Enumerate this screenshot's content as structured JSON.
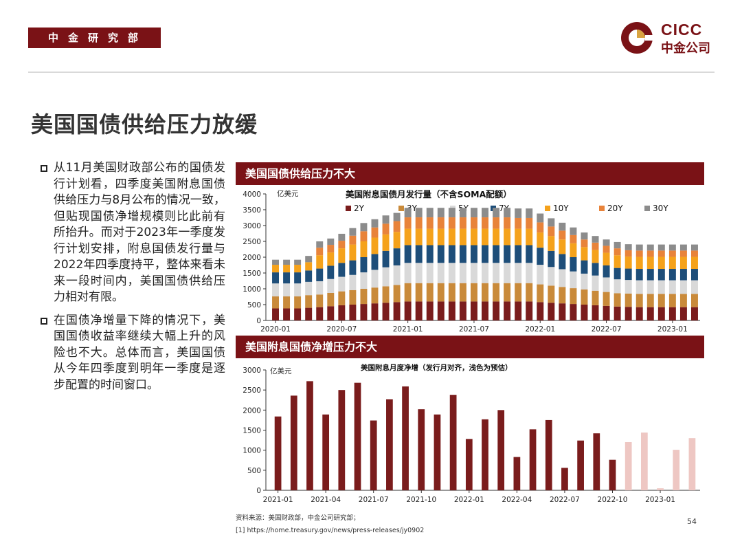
{
  "header": {
    "dept": "中金研究部",
    "logo_en": "CICC",
    "logo_cn": "中金公司",
    "brand_color": "#7a1216"
  },
  "title": "美国国债供给压力放缓",
  "bullets": [
    "从11月美国财政部公布的国债发行计划看，四季度美国附息国债供给压力与8月公布的情况一致，但贴现国债净增规模则比此前有所抬升。而对于2023年一季度发行计划安排，附息国债发行量与2022年四季度持平，整体来看未来一段时间内，美国国债供给压力相对有限。",
    "在国债净增量下降的情况下，美国国债收益率继续大幅上升的风险也不大。总体而言，美国国债从今年四季度到明年一季度是逐步配置的时间窗口。"
  ],
  "panels": {
    "p1": "美国国债供给压力不大",
    "p2": "美国附息国债净增压力不大"
  },
  "chart_data": [
    {
      "type": "bar",
      "stacked": true,
      "title": "美国附息国债月发行量（不含SOMA配额）",
      "unit": "亿美元",
      "ylim": [
        0,
        4000
      ],
      "yticks": [
        0,
        500,
        1000,
        1500,
        2000,
        2500,
        3000,
        3500,
        4000
      ],
      "xtick_labels": [
        "2020-01",
        "2020-07",
        "2021-01",
        "2021-07",
        "2022-01",
        "2022-07",
        "2023-01"
      ],
      "categories": [
        "2020-01",
        "2020-02",
        "2020-03",
        "2020-04",
        "2020-05",
        "2020-06",
        "2020-07",
        "2020-08",
        "2020-09",
        "2020-10",
        "2020-11",
        "2020-12",
        "2021-01",
        "2021-02",
        "2021-03",
        "2021-04",
        "2021-05",
        "2021-06",
        "2021-07",
        "2021-08",
        "2021-09",
        "2021-10",
        "2021-11",
        "2021-12",
        "2022-01",
        "2022-02",
        "2022-03",
        "2022-04",
        "2022-05",
        "2022-06",
        "2022-07",
        "2022-08",
        "2022-09",
        "2022-10",
        "2022-11",
        "2022-12",
        "2023-01",
        "2023-02",
        "2023-03"
      ],
      "series": [
        {
          "name": "2Y",
          "color": "#7a1c1c",
          "values": [
            380,
            380,
            380,
            400,
            420,
            450,
            480,
            500,
            520,
            540,
            560,
            580,
            600,
            600,
            600,
            600,
            600,
            600,
            600,
            600,
            600,
            600,
            600,
            600,
            580,
            560,
            540,
            520,
            500,
            480,
            460,
            440,
            430,
            420,
            420,
            420,
            420,
            420,
            420
          ]
        },
        {
          "name": "3Y",
          "color": "#c98a3a",
          "values": [
            380,
            380,
            380,
            400,
            400,
            420,
            440,
            460,
            480,
            500,
            520,
            540,
            580,
            580,
            580,
            580,
            580,
            580,
            580,
            580,
            580,
            580,
            580,
            580,
            560,
            540,
            520,
            500,
            480,
            460,
            440,
            420,
            420,
            420,
            420,
            420,
            420,
            420,
            420
          ]
        },
        {
          "name": "5Y",
          "color": "#d9d9d9",
          "values": [
            410,
            410,
            410,
            420,
            420,
            440,
            460,
            480,
            520,
            560,
            600,
            620,
            640,
            640,
            640,
            640,
            640,
            640,
            640,
            640,
            640,
            640,
            640,
            640,
            620,
            590,
            560,
            530,
            500,
            480,
            460,
            440,
            430,
            430,
            430,
            430,
            430,
            430,
            430
          ]
        },
        {
          "name": "7Y",
          "color": "#1e4e79",
          "values": [
            350,
            350,
            350,
            360,
            400,
            420,
            440,
            460,
            480,
            500,
            520,
            540,
            560,
            560,
            560,
            560,
            560,
            560,
            560,
            560,
            560,
            560,
            560,
            560,
            540,
            510,
            480,
            450,
            420,
            400,
            380,
            360,
            360,
            360,
            360,
            360,
            360,
            360,
            360
          ]
        },
        {
          "name": "10Y",
          "color": "#f5a21b",
          "values": [
            240,
            240,
            240,
            260,
            420,
            420,
            460,
            500,
            500,
            520,
            520,
            520,
            520,
            520,
            520,
            520,
            520,
            520,
            520,
            520,
            520,
            520,
            520,
            520,
            480,
            470,
            460,
            440,
            420,
            410,
            400,
            400,
            380,
            380,
            380,
            380,
            380,
            380,
            380
          ]
        },
        {
          "name": "20Y",
          "color": "#e8833a",
          "values": [
            0,
            0,
            0,
            0,
            240,
            240,
            240,
            280,
            320,
            320,
            340,
            340,
            360,
            360,
            360,
            360,
            360,
            360,
            360,
            360,
            360,
            360,
            340,
            340,
            320,
            300,
            280,
            260,
            240,
            230,
            220,
            220,
            200,
            200,
            200,
            200,
            200,
            200,
            200
          ]
        },
        {
          "name": "30Y",
          "color": "#8c8c8c",
          "values": [
            160,
            160,
            160,
            200,
            200,
            200,
            220,
            240,
            260,
            260,
            260,
            260,
            300,
            300,
            300,
            300,
            300,
            300,
            300,
            300,
            300,
            300,
            300,
            300,
            280,
            260,
            250,
            240,
            220,
            210,
            200,
            200,
            190,
            190,
            190,
            190,
            190,
            190,
            190
          ]
        }
      ]
    },
    {
      "type": "bar",
      "title": "美国附息月度净增（发行月对齐，浅色为预估）",
      "unit": "亿美元",
      "ylim": [
        0,
        3000
      ],
      "yticks": [
        0,
        500,
        1000,
        1500,
        2000,
        2500,
        3000
      ],
      "xtick_labels": [
        "2021-01",
        "2021-04",
        "2021-07",
        "2021-10",
        "2022-01",
        "2022-04",
        "2022-07",
        "2022-10",
        "2023-01"
      ],
      "categories": [
        "2021-01",
        "2021-02",
        "2021-03",
        "2021-04",
        "2021-05",
        "2021-06",
        "2021-07",
        "2021-08",
        "2021-09",
        "2021-10",
        "2021-11",
        "2021-12",
        "2022-01",
        "2022-02",
        "2022-03",
        "2022-04",
        "2022-05",
        "2022-06",
        "2022-07",
        "2022-08",
        "2022-09",
        "2022-10",
        "2022-11",
        "2022-12",
        "2023-01",
        "2023-02",
        "2023-03"
      ],
      "values": [
        1840,
        2360,
        2720,
        1890,
        2500,
        2680,
        1740,
        2270,
        2590,
        2020,
        1890,
        2380,
        1280,
        1770,
        2000,
        830,
        1520,
        1750,
        560,
        1240,
        1420,
        760,
        1200,
        1440,
        50,
        1010,
        1300
      ],
      "estimated": [
        false,
        false,
        false,
        false,
        false,
        false,
        false,
        false,
        false,
        false,
        false,
        false,
        false,
        false,
        false,
        false,
        false,
        false,
        false,
        false,
        false,
        false,
        true,
        true,
        true,
        true,
        true
      ],
      "colors": {
        "actual": "#7a1c1c",
        "estimate": "#eec7c3"
      }
    }
  ],
  "source": "资料来源：美国财政部，中金公司研究部；",
  "footnote": "[1] https://home.treasury.gov/news/press-releases/jy0902",
  "page_number": "54"
}
